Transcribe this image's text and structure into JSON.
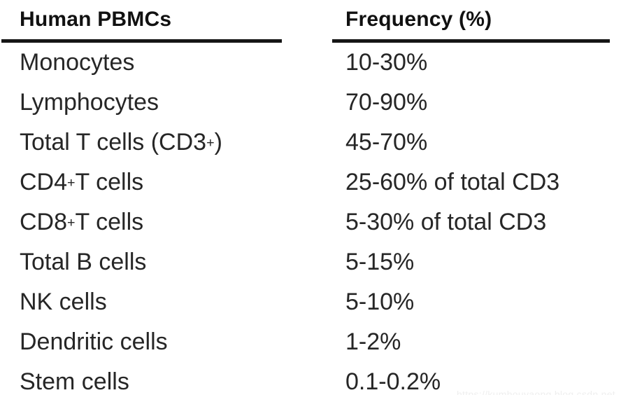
{
  "chart_data": {
    "type": "table",
    "title": "",
    "columns": [
      "Human PBMCs",
      "Frequency (%)"
    ],
    "rows": [
      [
        "Monocytes",
        "10-30%"
      ],
      [
        "Lymphocytes",
        "70-90%"
      ],
      [
        "Total T cells (CD3+)",
        "45-70%"
      ],
      [
        "CD4+ T cells",
        "25-60% of total CD3"
      ],
      [
        "CD8+ T cells",
        "5-30% of total CD3"
      ],
      [
        "Total B cells",
        "5-15%"
      ],
      [
        "NK cells",
        "5-10%"
      ],
      [
        "Dendritic cells",
        "1-2%"
      ],
      [
        "Stem cells",
        "0.1-0.2%"
      ]
    ],
    "layout_hints": {
      "header_bold": true,
      "header_underline": true,
      "grid": "off"
    }
  },
  "colors": {
    "background": "#ffffff",
    "header_text": "#111111",
    "body_text": "#262626",
    "rule": "#161616",
    "watermark": "#efefef"
  },
  "watermark": {
    "text": "https://kumhouyaong.blog.csdn.net"
  }
}
